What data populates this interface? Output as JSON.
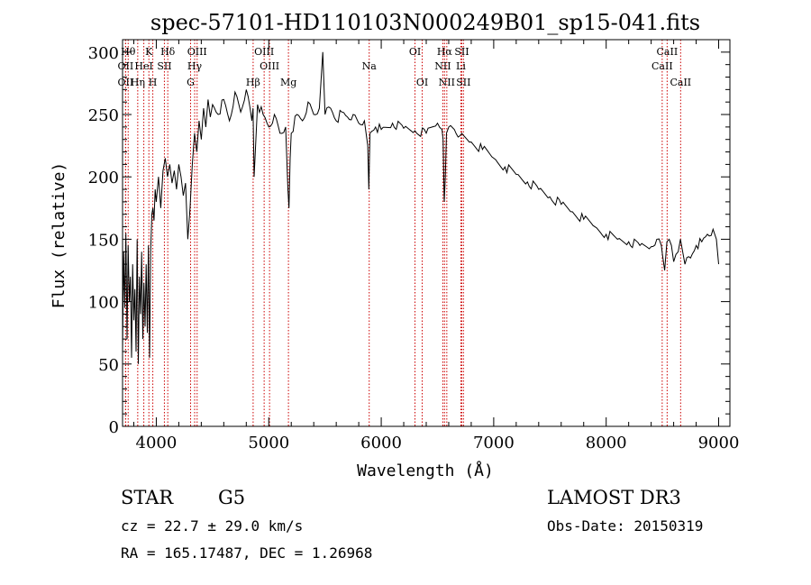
{
  "chart_data": {
    "type": "line",
    "title": "spec-57101-HD110103N000249B01_sp15-041.fits",
    "xlabel": "Wavelength (Å)",
    "ylabel": "Flux (relative)",
    "xlim": [
      3700,
      9100
    ],
    "ylim": [
      0,
      310
    ],
    "xticks": [
      4000,
      5000,
      6000,
      7000,
      8000,
      9000
    ],
    "yticks": [
      0,
      50,
      100,
      150,
      200,
      250,
      300
    ],
    "grid": false,
    "series_color": "#000000",
    "line_marker_color": "#cc0000",
    "spectrum": {
      "x": [
        3700,
        3710,
        3720,
        3730,
        3740,
        3750,
        3760,
        3770,
        3780,
        3790,
        3800,
        3810,
        3820,
        3830,
        3840,
        3850,
        3860,
        3870,
        3880,
        3890,
        3900,
        3910,
        3920,
        3930,
        3940,
        3950,
        3960,
        3970,
        3980,
        3990,
        4000,
        4020,
        4040,
        4060,
        4080,
        4100,
        4120,
        4140,
        4160,
        4180,
        4200,
        4220,
        4240,
        4260,
        4280,
        4300,
        4320,
        4340,
        4360,
        4380,
        4400,
        4420,
        4440,
        4460,
        4480,
        4500,
        4550,
        4600,
        4650,
        4700,
        4750,
        4800,
        4850,
        4860,
        4870,
        4900,
        4950,
        5000,
        5050,
        5100,
        5150,
        5170,
        5180,
        5190,
        5200,
        5250,
        5300,
        5350,
        5400,
        5450,
        5480,
        5500,
        5550,
        5600,
        5650,
        5700,
        5750,
        5800,
        5850,
        5880,
        5890,
        5900,
        5950,
        6000,
        6100,
        6200,
        6300,
        6400,
        6500,
        6540,
        6550,
        6560,
        6570,
        6580,
        6600,
        6650,
        6700,
        6800,
        6900,
        7000,
        7100,
        7200,
        7300,
        7400,
        7500,
        7600,
        7700,
        7800,
        7900,
        8000,
        8100,
        8200,
        8300,
        8400,
        8450,
        8490,
        8500,
        8520,
        8540,
        8560,
        8580,
        8600,
        8640,
        8660,
        8680,
        8700,
        8750,
        8800,
        8850,
        8900,
        8950,
        8980,
        9000
      ],
      "y": [
        60,
        140,
        95,
        155,
        70,
        145,
        100,
        120,
        55,
        130,
        85,
        110,
        60,
        150,
        50,
        120,
        90,
        140,
        70,
        115,
        80,
        130,
        75,
        145,
        55,
        140,
        170,
        175,
        165,
        190,
        180,
        200,
        175,
        205,
        215,
        200,
        210,
        195,
        205,
        190,
        210,
        200,
        185,
        195,
        150,
        175,
        210,
        235,
        220,
        245,
        230,
        255,
        240,
        262,
        248,
        258,
        250,
        262,
        245,
        268,
        252,
        270,
        245,
        255,
        200,
        258,
        250,
        240,
        250,
        235,
        240,
        190,
        175,
        215,
        235,
        250,
        245,
        260,
        250,
        255,
        300,
        250,
        255,
        245,
        252,
        248,
        250,
        243,
        245,
        225,
        190,
        235,
        240,
        238,
        243,
        239,
        237,
        235,
        243,
        238,
        230,
        180,
        200,
        235,
        240,
        238,
        233,
        228,
        222,
        215,
        208,
        202,
        196,
        190,
        184,
        178,
        172,
        166,
        160,
        154,
        150,
        148,
        145,
        144,
        150,
        145,
        138,
        125,
        148,
        150,
        145,
        132,
        140,
        150,
        140,
        130,
        135,
        145,
        148,
        154,
        158,
        150,
        130
      ]
    },
    "lines": [
      {
        "label": "Hθ",
        "x": 3750,
        "row": 1
      },
      {
        "label": "OII",
        "x": 3727,
        "row": 2
      },
      {
        "label": "OII",
        "x": 3727,
        "row": 3
      },
      {
        "label": "K",
        "x": 3934,
        "row": 1
      },
      {
        "label": "HeI",
        "x": 3889,
        "row": 2
      },
      {
        "label": "Hη",
        "x": 3835,
        "row": 3
      },
      {
        "label": "Hδ",
        "x": 4102,
        "row": 1
      },
      {
        "label": "SII",
        "x": 4072,
        "row": 2
      },
      {
        "label": "H",
        "x": 3969,
        "row": 3
      },
      {
        "label": "OIII",
        "x": 4363,
        "row": 1
      },
      {
        "label": "Hγ",
        "x": 4341,
        "row": 2
      },
      {
        "label": "G",
        "x": 4305,
        "row": 3
      },
      {
        "label": "OIII",
        "x": 4959,
        "row": 1
      },
      {
        "label": "OIII",
        "x": 5007,
        "row": 2
      },
      {
        "label": "Hβ",
        "x": 4861,
        "row": 3
      },
      {
        "label": "Mg",
        "x": 5175,
        "row": 3
      },
      {
        "label": "Na",
        "x": 5893,
        "row": 2
      },
      {
        "label": "OI",
        "x": 6300,
        "row": 1
      },
      {
        "label": "OI",
        "x": 6364,
        "row": 3
      },
      {
        "label": "Hα",
        "x": 6563,
        "row": 1
      },
      {
        "label": "SII",
        "x": 6716,
        "row": 1
      },
      {
        "label": "NII",
        "x": 6548,
        "row": 2
      },
      {
        "label": "Li",
        "x": 6708,
        "row": 2
      },
      {
        "label": "NII",
        "x": 6583,
        "row": 3
      },
      {
        "label": "SII",
        "x": 6731,
        "row": 3
      },
      {
        "label": "CaII",
        "x": 8542,
        "row": 1
      },
      {
        "label": "CaII",
        "x": 8498,
        "row": 2
      },
      {
        "label": "CaII",
        "x": 8662,
        "row": 3
      }
    ]
  },
  "info": {
    "class_label": "STAR",
    "subclass": "G5",
    "survey": "LAMOST DR3",
    "cz_text": "cz = 22.7 ± 29.0 km/s",
    "obs_date_text": "Obs-Date: 20150319",
    "coords_text": "RA = 165.17487, DEC =    1.26968"
  }
}
